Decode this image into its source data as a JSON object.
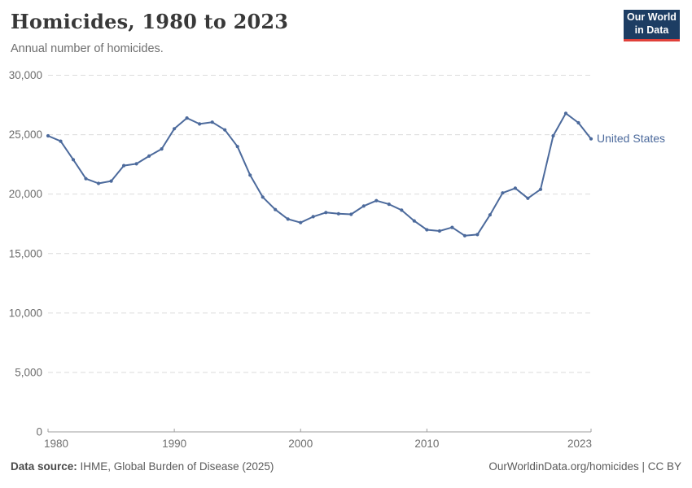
{
  "header": {
    "title": "Homicides, 1980 to 2023",
    "subtitle": "Annual number of homicides."
  },
  "logo": {
    "line1": "Our World",
    "line2": "in Data",
    "bg_color": "#1d3d63",
    "bar_color": "#e0403a"
  },
  "footer": {
    "source_label": "Data source:",
    "source_text": " IHME, Global Burden of Disease (2025)",
    "right_text": "OurWorldinData.org/homicides | CC BY"
  },
  "chart_data": {
    "type": "line",
    "title": "Homicides, 1980 to 2023",
    "subtitle": "Annual number of homicides.",
    "xlabel": "",
    "ylabel": "",
    "xlim": [
      1980,
      2023
    ],
    "ylim": [
      0,
      30000
    ],
    "x_ticks": [
      1980,
      1990,
      2000,
      2010,
      2023
    ],
    "y_ticks": [
      0,
      5000,
      10000,
      15000,
      20000,
      25000,
      30000
    ],
    "grid": "horizontal-dashed",
    "grid_color": "#dcdcdc",
    "axis_color": "#9e9e9e",
    "legend_position": "end-of-line-label",
    "series": [
      {
        "name": "United States",
        "color": "#4C6A9C",
        "x": [
          1980,
          1981,
          1982,
          1983,
          1984,
          1985,
          1986,
          1987,
          1988,
          1989,
          1990,
          1991,
          1992,
          1993,
          1994,
          1995,
          1996,
          1997,
          1998,
          1999,
          2000,
          2001,
          2002,
          2003,
          2004,
          2005,
          2006,
          2007,
          2008,
          2009,
          2010,
          2011,
          2012,
          2013,
          2014,
          2015,
          2016,
          2017,
          2018,
          2019,
          2020,
          2021,
          2022,
          2023
        ],
        "values": [
          24900,
          24450,
          22900,
          21300,
          20900,
          21100,
          22400,
          22550,
          23200,
          23800,
          25500,
          26400,
          25900,
          26050,
          25400,
          24000,
          21600,
          19750,
          18700,
          17900,
          17600,
          18100,
          18450,
          18350,
          18300,
          19000,
          19450,
          19150,
          18650,
          17750,
          17000,
          16900,
          17200,
          16500,
          16600,
          18250,
          20100,
          20500,
          19650,
          20400,
          24900,
          26800,
          26000,
          24650
        ]
      }
    ]
  }
}
